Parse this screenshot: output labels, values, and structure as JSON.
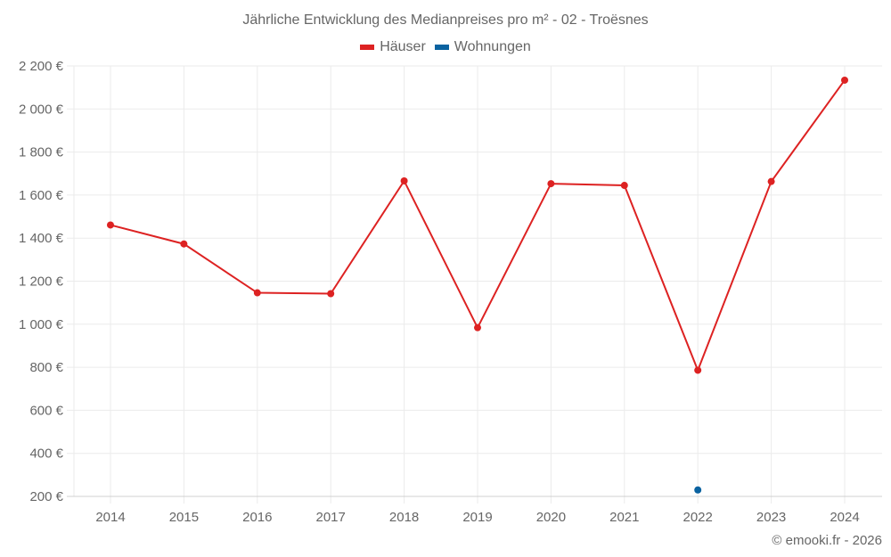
{
  "title": "Jährliche Entwicklung des Medianpreises pro m² - 02 - Troësnes",
  "legend": [
    {
      "label": "Häuser",
      "color": "#dd2222"
    },
    {
      "label": "Wohnungen",
      "color": "#0a62a0"
    }
  ],
  "credit": "© emooki.fr - 2026",
  "colors": {
    "grid": "#ebebeb",
    "axis": "#d0d0d0",
    "text": "#666666"
  },
  "chart_data": {
    "type": "line",
    "title": "Jährliche Entwicklung des Medianpreises pro m² - 02 - Troësnes",
    "xlabel": "",
    "ylabel": "",
    "categories": [
      "2014",
      "2015",
      "2016",
      "2017",
      "2018",
      "2019",
      "2020",
      "2021",
      "2022",
      "2023",
      "2024"
    ],
    "series": [
      {
        "name": "Häuser",
        "color": "#dd2222",
        "values": [
          1461,
          1373,
          1146,
          1142,
          1666,
          984,
          1653,
          1645,
          786,
          1663,
          2134
        ]
      },
      {
        "name": "Wohnungen",
        "color": "#0a62a0",
        "values": [
          null,
          null,
          null,
          null,
          null,
          null,
          null,
          null,
          230,
          null,
          null
        ]
      }
    ],
    "ylim": [
      200,
      2200
    ],
    "yticks": [
      200,
      400,
      600,
      800,
      1000,
      1200,
      1400,
      1600,
      1800,
      2000,
      2200
    ],
    "ytick_labels": [
      "200 €",
      "400 €",
      "600 €",
      "800 €",
      "1 000 €",
      "1 200 €",
      "1 400 €",
      "1 600 €",
      "1 800 €",
      "2 000 €",
      "2 200 €"
    ],
    "grid": true,
    "legend_position": "top"
  }
}
